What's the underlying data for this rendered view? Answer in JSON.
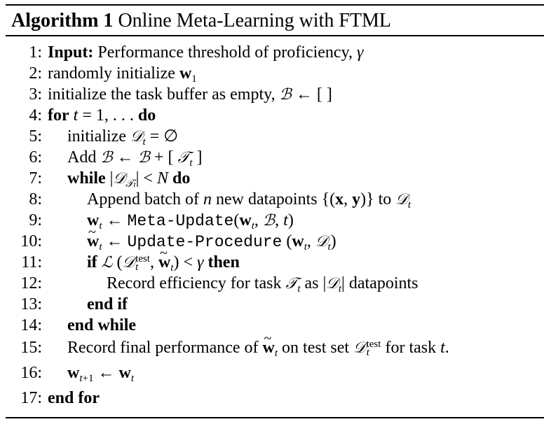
{
  "header": {
    "label": "Algorithm 1",
    "title": "Online Meta-Learning with FTML"
  },
  "lines": [
    {
      "num": "1:",
      "kw": "Input:",
      "text": "Performance threshold of proficiency,"
    },
    {
      "num": "2:",
      "text": "randomly initialize"
    },
    {
      "num": "3:",
      "text": "initialize the task buffer as empty,"
    },
    {
      "num": "4:",
      "kw": "for",
      "kw_end": "do"
    },
    {
      "num": "5:",
      "text": "initialize"
    },
    {
      "num": "6:",
      "text": "Add"
    },
    {
      "num": "7:",
      "kw": "while",
      "kw_end": "do"
    },
    {
      "num": "8:",
      "text": "Append batch of",
      "text2": "new datapoints",
      "text3": "to"
    },
    {
      "num": "9:",
      "proc": "Meta-Update"
    },
    {
      "num": "10:",
      "proc": "Update-Procedure"
    },
    {
      "num": "11:",
      "kw": "if",
      "kw_end": "then"
    },
    {
      "num": "12:",
      "text": "Record efficiency for task",
      "text2": "as",
      "text3": "datapoints"
    },
    {
      "num": "13:",
      "kw": "end if"
    },
    {
      "num": "14:",
      "kw": "end while"
    },
    {
      "num": "15:",
      "text": "Record final performance of",
      "text2": "on test set",
      "text3": "for task"
    },
    {
      "num": "16:"
    },
    {
      "num": "17:",
      "kw": "end for"
    }
  ]
}
